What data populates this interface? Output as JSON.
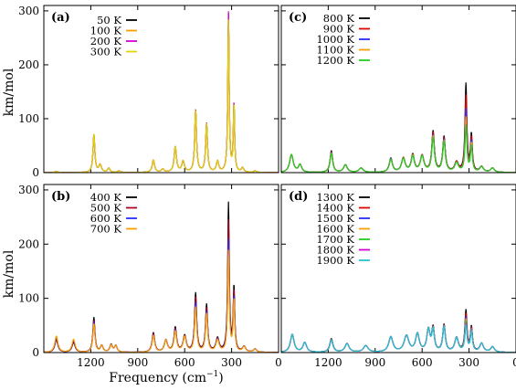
{
  "figure": {
    "y_axis_label": "km/mol",
    "x_axis_label_main": "Frequency (cm",
    "x_axis_label_sup": "−1",
    "x_axis_label_close": ")"
  },
  "chart_data": [
    {
      "type": "line",
      "panel_label": "(a)",
      "xlim": [
        1500,
        0
      ],
      "ylim": [
        0,
        310
      ],
      "x_ticks": [
        "1200",
        "900",
        "600",
        "300",
        "0"
      ],
      "y_ticks": [
        "0",
        "100",
        "200",
        "300"
      ],
      "series": [
        {
          "name": "50 K",
          "color": "#000000"
        },
        {
          "name": "100 K",
          "color": "#ff9e00"
        },
        {
          "name": "200 K",
          "color": "#d400d4"
        },
        {
          "name": "300 K",
          "color": "#e0d500"
        }
      ],
      "peaks": [
        {
          "x": 1420,
          "w": 12,
          "h": [
            2,
            2,
            2,
            2
          ]
        },
        {
          "x": 1180,
          "w": 7,
          "h": [
            70,
            70,
            69,
            70
          ]
        },
        {
          "x": 1140,
          "w": 10,
          "h": [
            14,
            14,
            14,
            14
          ]
        },
        {
          "x": 1085,
          "w": 9,
          "h": [
            8,
            8,
            8,
            8
          ]
        },
        {
          "x": 1020,
          "w": 10,
          "h": [
            3,
            3,
            3,
            3
          ]
        },
        {
          "x": 800,
          "w": 9,
          "h": [
            23,
            23,
            23,
            23
          ]
        },
        {
          "x": 740,
          "w": 10,
          "h": [
            6,
            6,
            6,
            6
          ]
        },
        {
          "x": 660,
          "w": 9,
          "h": [
            47,
            47,
            47,
            47
          ]
        },
        {
          "x": 610,
          "w": 10,
          "h": [
            20,
            20,
            20,
            20
          ]
        },
        {
          "x": 530,
          "w": 7,
          "h": [
            115,
            115,
            114,
            113
          ]
        },
        {
          "x": 460,
          "w": 7,
          "h": [
            90,
            90,
            90,
            89
          ]
        },
        {
          "x": 390,
          "w": 9,
          "h": [
            20,
            20,
            20,
            20
          ]
        },
        {
          "x": 320,
          "w": 5,
          "h": [
            292,
            285,
            295,
            280
          ]
        },
        {
          "x": 285,
          "w": 5,
          "h": [
            125,
            125,
            127,
            124
          ]
        },
        {
          "x": 230,
          "w": 9,
          "h": [
            8,
            8,
            8,
            8
          ]
        },
        {
          "x": 150,
          "w": 10,
          "h": [
            3,
            3,
            3,
            3
          ]
        }
      ]
    },
    {
      "type": "line",
      "panel_label": "(c)",
      "xlim": [
        1500,
        0
      ],
      "ylim": [
        0,
        310
      ],
      "x_ticks": [
        "1200",
        "900",
        "600",
        "300",
        "0"
      ],
      "y_ticks": [
        "0",
        "100",
        "200",
        "300"
      ],
      "series": [
        {
          "name": "800 K",
          "color": "#000000"
        },
        {
          "name": "900 K",
          "color": "#e00000"
        },
        {
          "name": "1000 K",
          "color": "#2a2aff"
        },
        {
          "name": "1100 K",
          "color": "#ff9e00"
        },
        {
          "name": "1200 K",
          "color": "#22cc22"
        }
      ],
      "peaks": [
        {
          "x": 1435,
          "w": 14,
          "h": [
            33,
            33,
            33,
            33,
            33
          ]
        },
        {
          "x": 1380,
          "w": 12,
          "h": [
            14,
            14,
            14,
            14,
            14
          ]
        },
        {
          "x": 1180,
          "w": 10,
          "h": [
            40,
            38,
            37,
            36,
            35
          ]
        },
        {
          "x": 1090,
          "w": 14,
          "h": [
            14,
            14,
            14,
            14,
            14
          ]
        },
        {
          "x": 990,
          "w": 16,
          "h": [
            8,
            8,
            8,
            8,
            8
          ]
        },
        {
          "x": 800,
          "w": 12,
          "h": [
            26,
            25,
            25,
            24,
            24
          ]
        },
        {
          "x": 720,
          "w": 14,
          "h": [
            26,
            26,
            25,
            25,
            25
          ]
        },
        {
          "x": 660,
          "w": 12,
          "h": [
            32,
            31,
            30,
            30,
            29
          ]
        },
        {
          "x": 600,
          "w": 14,
          "h": [
            30,
            30,
            29,
            29,
            29
          ]
        },
        {
          "x": 530,
          "w": 10,
          "h": [
            75,
            72,
            68,
            66,
            63
          ]
        },
        {
          "x": 460,
          "w": 10,
          "h": [
            65,
            62,
            60,
            58,
            56
          ]
        },
        {
          "x": 380,
          "w": 14,
          "h": [
            18,
            18,
            17,
            17,
            17
          ]
        },
        {
          "x": 320,
          "w": 7,
          "h": [
            162,
            140,
            115,
            100,
            85
          ]
        },
        {
          "x": 285,
          "w": 7,
          "h": [
            68,
            62,
            56,
            52,
            48
          ]
        },
        {
          "x": 220,
          "w": 14,
          "h": [
            10,
            10,
            10,
            10,
            10
          ]
        },
        {
          "x": 150,
          "w": 14,
          "h": [
            8,
            8,
            8,
            8,
            8
          ]
        }
      ]
    },
    {
      "type": "line",
      "panel_label": "(b)",
      "xlim": [
        1500,
        0
      ],
      "ylim": [
        0,
        310
      ],
      "x_ticks": [
        "1200",
        "900",
        "600",
        "300",
        "0"
      ],
      "y_ticks": [
        "0",
        "100",
        "200",
        "300"
      ],
      "series": [
        {
          "name": "400 K",
          "color": "#000000"
        },
        {
          "name": "500 K",
          "color": "#b00020"
        },
        {
          "name": "600 K",
          "color": "#2a2aff"
        },
        {
          "name": "700 K",
          "color": "#ff9e00"
        }
      ],
      "peaks": [
        {
          "x": 1420,
          "w": 12,
          "h": [
            23,
            25,
            27,
            30
          ]
        },
        {
          "x": 1310,
          "w": 12,
          "h": [
            18,
            20,
            22,
            24
          ]
        },
        {
          "x": 1180,
          "w": 8,
          "h": [
            64,
            58,
            55,
            52
          ]
        },
        {
          "x": 1130,
          "w": 10,
          "h": [
            12,
            12,
            12,
            12
          ]
        },
        {
          "x": 1070,
          "w": 10,
          "h": [
            14,
            13,
            13,
            13
          ]
        },
        {
          "x": 1040,
          "w": 10,
          "h": [
            12,
            12,
            12,
            12
          ]
        },
        {
          "x": 800,
          "w": 10,
          "h": [
            36,
            34,
            32,
            31
          ]
        },
        {
          "x": 720,
          "w": 12,
          "h": [
            22,
            22,
            22,
            22
          ]
        },
        {
          "x": 660,
          "w": 10,
          "h": [
            45,
            42,
            40,
            38
          ]
        },
        {
          "x": 600,
          "w": 12,
          "h": [
            30,
            29,
            28,
            28
          ]
        },
        {
          "x": 530,
          "w": 8,
          "h": [
            108,
            100,
            90,
            82
          ]
        },
        {
          "x": 460,
          "w": 8,
          "h": [
            87,
            80,
            74,
            70
          ]
        },
        {
          "x": 390,
          "w": 12,
          "h": [
            25,
            24,
            23,
            22
          ]
        },
        {
          "x": 320,
          "w": 6,
          "h": [
            273,
            240,
            205,
            185
          ]
        },
        {
          "x": 285,
          "w": 6,
          "h": [
            118,
            110,
            100,
            95
          ]
        },
        {
          "x": 220,
          "w": 12,
          "h": [
            10,
            10,
            10,
            10
          ]
        },
        {
          "x": 150,
          "w": 12,
          "h": [
            6,
            6,
            6,
            6
          ]
        }
      ]
    },
    {
      "type": "line",
      "panel_label": "(d)",
      "xlim": [
        1500,
        0
      ],
      "ylim": [
        0,
        310
      ],
      "x_ticks": [
        "1200",
        "900",
        "600",
        "300",
        "0"
      ],
      "y_ticks": [
        "0",
        "100",
        "200",
        "300"
      ],
      "series": [
        {
          "name": "1300 K",
          "color": "#000000"
        },
        {
          "name": "1400 K",
          "color": "#e00000"
        },
        {
          "name": "1500 K",
          "color": "#2a2aff"
        },
        {
          "name": "1600 K",
          "color": "#ff9e00"
        },
        {
          "name": "1700 K",
          "color": "#22cc22"
        },
        {
          "name": "1800 K",
          "color": "#d400d4"
        },
        {
          "name": "1900 K",
          "color": "#22c4d4"
        }
      ],
      "peaks": [
        {
          "x": 1430,
          "w": 14,
          "h": [
            33,
            33,
            33,
            33,
            33,
            33,
            33
          ]
        },
        {
          "x": 1350,
          "w": 14,
          "h": [
            18,
            18,
            18,
            18,
            18,
            18,
            18
          ]
        },
        {
          "x": 1180,
          "w": 12,
          "h": [
            25,
            24,
            24,
            23,
            23,
            22,
            22
          ]
        },
        {
          "x": 1080,
          "w": 16,
          "h": [
            16,
            16,
            16,
            16,
            16,
            16,
            16
          ]
        },
        {
          "x": 960,
          "w": 18,
          "h": [
            12,
            12,
            12,
            12,
            12,
            12,
            12
          ]
        },
        {
          "x": 800,
          "w": 16,
          "h": [
            28,
            28,
            28,
            28,
            28,
            28,
            28
          ]
        },
        {
          "x": 700,
          "w": 18,
          "h": [
            30,
            30,
            30,
            30,
            30,
            30,
            30
          ]
        },
        {
          "x": 630,
          "w": 14,
          "h": [
            33,
            33,
            33,
            33,
            33,
            33,
            33
          ]
        },
        {
          "x": 560,
          "w": 12,
          "h": [
            40,
            40,
            40,
            40,
            40,
            40,
            40
          ]
        },
        {
          "x": 530,
          "w": 10,
          "h": [
            43,
            42,
            41,
            40,
            40,
            39,
            39
          ]
        },
        {
          "x": 460,
          "w": 10,
          "h": [
            50,
            49,
            48,
            47,
            47,
            46,
            46
          ]
        },
        {
          "x": 380,
          "w": 14,
          "h": [
            26,
            26,
            26,
            26,
            26,
            26,
            26
          ]
        },
        {
          "x": 320,
          "w": 8,
          "h": [
            75,
            68,
            62,
            58,
            54,
            50,
            48
          ]
        },
        {
          "x": 285,
          "w": 8,
          "h": [
            45,
            43,
            41,
            40,
            39,
            38,
            37
          ]
        },
        {
          "x": 220,
          "w": 14,
          "h": [
            16,
            16,
            16,
            16,
            16,
            16,
            16
          ]
        },
        {
          "x": 150,
          "w": 14,
          "h": [
            10,
            10,
            10,
            10,
            10,
            10,
            10
          ]
        }
      ]
    }
  ]
}
